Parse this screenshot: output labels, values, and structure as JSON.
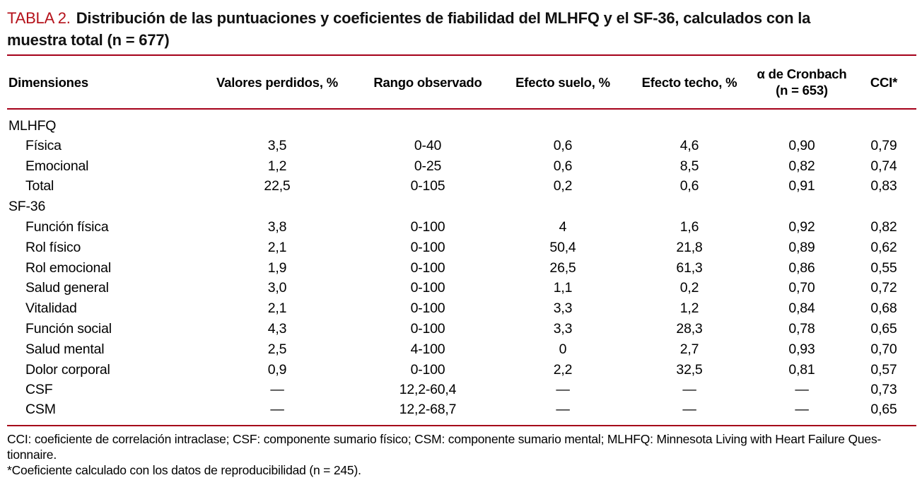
{
  "colors": {
    "title_red": "#b5121b",
    "rule_red": "#a50019"
  },
  "table": {
    "label": "TABLA 2.",
    "title_line1": "Distribución de las puntuaciones y coeficientes de fiabilidad del MLHFQ y el SF-36, calculados con la",
    "title_line2": "muestra total (n = 677)",
    "columns": [
      {
        "label": "Dimensiones"
      },
      {
        "label": "Valores perdidos, %"
      },
      {
        "label": "Rango observado"
      },
      {
        "label": "Efecto suelo, %"
      },
      {
        "label": "Efecto techo, %"
      },
      {
        "label": "α de Cronbach",
        "label2": "(n = 653)"
      },
      {
        "label": "CCI*"
      }
    ],
    "rows": [
      {
        "type": "group",
        "label": "MLHFQ",
        "values": [
          "",
          "",
          "",
          "",
          "",
          ""
        ]
      },
      {
        "type": "item",
        "label": "Física",
        "values": [
          "3,5",
          "0-40",
          "0,6",
          "4,6",
          "0,90",
          "0,79"
        ]
      },
      {
        "type": "item",
        "label": "Emocional",
        "values": [
          "1,2",
          "0-25",
          "0,6",
          "8,5",
          "0,82",
          "0,74"
        ]
      },
      {
        "type": "item",
        "label": "Total",
        "values": [
          "22,5",
          "0-105",
          "0,2",
          "0,6",
          "0,91",
          "0,83"
        ]
      },
      {
        "type": "group",
        "label": "SF-36",
        "values": [
          "",
          "",
          "",
          "",
          "",
          ""
        ]
      },
      {
        "type": "item",
        "label": "Función física",
        "values": [
          "3,8",
          "0-100",
          "4",
          "1,6",
          "0,92",
          "0,82"
        ]
      },
      {
        "type": "item",
        "label": "Rol físico",
        "values": [
          "2,1",
          "0-100",
          "50,4",
          "21,8",
          "0,89",
          "0,62"
        ]
      },
      {
        "type": "item",
        "label": "Rol emocional",
        "values": [
          "1,9",
          "0-100",
          "26,5",
          "61,3",
          "0,86",
          "0,55"
        ]
      },
      {
        "type": "item",
        "label": "Salud general",
        "values": [
          "3,0",
          "0-100",
          "1,1",
          "0,2",
          "0,70",
          "0,72"
        ]
      },
      {
        "type": "item",
        "label": "Vitalidad",
        "values": [
          "2,1",
          "0-100",
          "3,3",
          "1,2",
          "0,84",
          "0,68"
        ]
      },
      {
        "type": "item",
        "label": "Función social",
        "values": [
          "4,3",
          "0-100",
          "3,3",
          "28,3",
          "0,78",
          "0,65"
        ]
      },
      {
        "type": "item",
        "label": "Salud mental",
        "values": [
          "2,5",
          "4-100",
          "0",
          "2,7",
          "0,93",
          "0,70"
        ]
      },
      {
        "type": "item",
        "label": "Dolor corporal",
        "values": [
          "0,9",
          "0-100",
          "2,2",
          "32,5",
          "0,81",
          "0,57"
        ]
      },
      {
        "type": "item",
        "label": "CSF",
        "values": [
          "—",
          "12,2-60,4",
          "—",
          "—",
          "—",
          "0,73"
        ]
      },
      {
        "type": "item",
        "label": "CSM",
        "values": [
          "—",
          "12,2-68,7",
          "—",
          "—",
          "—",
          "0,65"
        ]
      }
    ],
    "footnotes": [
      "CCI: coeficiente de correlación intraclase; CSF: componente sumario físico; CSM: componente sumario mental; MLHFQ: Minnesota Living with Heart Failure Ques-",
      "tionnaire.",
      "*Coeficiente calculado con los datos de reproducibilidad (n = 245)."
    ]
  }
}
